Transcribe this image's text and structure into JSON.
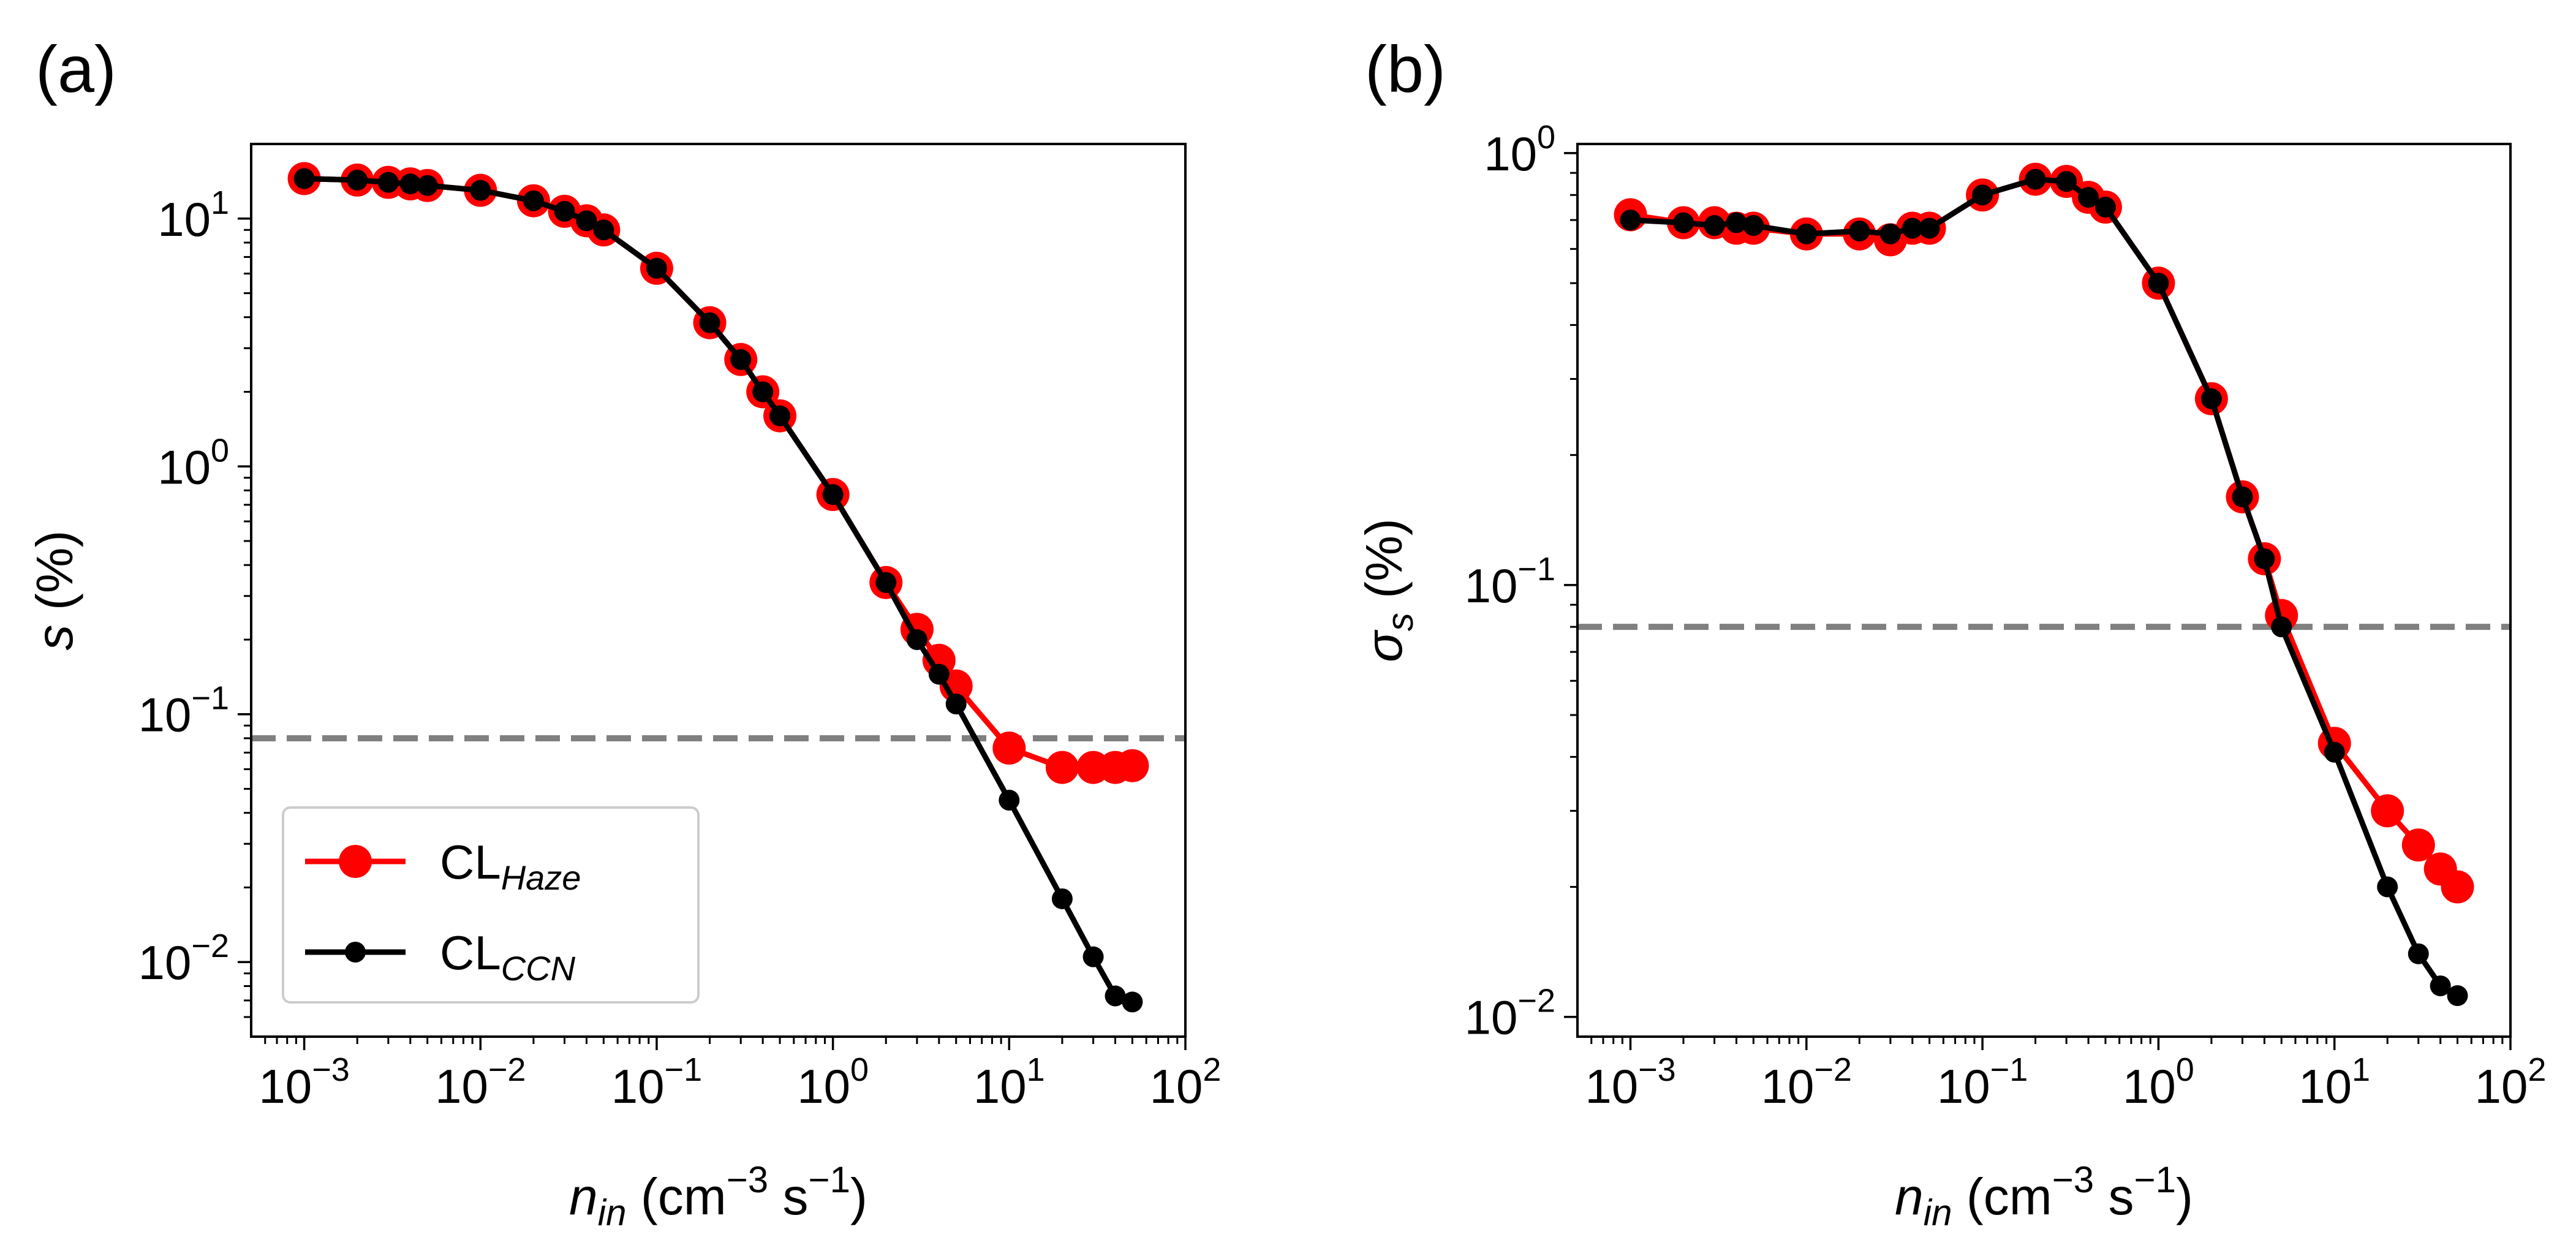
{
  "chart_data": [
    {
      "type": "line",
      "panel_label": "(a)",
      "xscale": "log",
      "yscale": "log",
      "xlim": [
        0.0005,
        100
      ],
      "ylim": [
        0.005,
        20
      ],
      "xticks": [
        {
          "value": 0.001,
          "base": "10",
          "exp": "−3"
        },
        {
          "value": 0.01,
          "base": "10",
          "exp": "−2"
        },
        {
          "value": 0.1,
          "base": "10",
          "exp": "−1"
        },
        {
          "value": 1,
          "base": "10",
          "exp": "0"
        },
        {
          "value": 10,
          "base": "10",
          "exp": "1"
        },
        {
          "value": 100,
          "base": "10",
          "exp": "2"
        }
      ],
      "yticks": [
        {
          "value": 0.01,
          "base": "10",
          "exp": "−2"
        },
        {
          "value": 0.1,
          "base": "10",
          "exp": "−1"
        },
        {
          "value": 1,
          "base": "10",
          "exp": "0"
        },
        {
          "value": 10,
          "base": "10",
          "exp": "1"
        }
      ],
      "xlabel": {
        "main": "n",
        "sub": "in",
        "units_pre": "(cm",
        "units_exp1": "−3",
        "units_mid": " s",
        "units_exp2": "−1",
        "units_post": ")"
      },
      "ylabel": {
        "main": "s",
        "units": " (%)"
      },
      "reference_line": {
        "y": 0.08,
        "style": "dashed",
        "color": "#808080"
      },
      "legend": {
        "placement": "lower-left"
      },
      "series": [
        {
          "name": "CL",
          "name_sub": "Haze",
          "color": "#ff0000",
          "marker": "large-circle",
          "x": [
            0.001,
            0.002,
            0.003,
            0.004,
            0.005,
            0.01,
            0.02,
            0.03,
            0.04,
            0.05,
            0.1,
            0.2,
            0.3,
            0.4,
            0.5,
            1,
            2,
            3,
            4,
            5,
            10,
            20,
            30,
            40,
            50
          ],
          "y": [
            14.5,
            14.3,
            14.0,
            13.8,
            13.6,
            13.0,
            11.8,
            10.7,
            9.8,
            9.0,
            6.3,
            3.8,
            2.7,
            2.0,
            1.6,
            0.77,
            0.34,
            0.22,
            0.165,
            0.13,
            0.073,
            0.061,
            0.061,
            0.061,
            0.062
          ]
        },
        {
          "name": "CL",
          "name_sub": "CCN",
          "color": "#000000",
          "marker": "small-circle",
          "x": [
            0.001,
            0.002,
            0.003,
            0.004,
            0.005,
            0.01,
            0.02,
            0.03,
            0.04,
            0.05,
            0.1,
            0.2,
            0.3,
            0.4,
            0.5,
            1,
            2,
            3,
            4,
            5,
            10,
            20,
            30,
            40,
            50
          ],
          "y": [
            14.5,
            14.3,
            14.0,
            13.8,
            13.6,
            13.0,
            11.8,
            10.7,
            9.8,
            9.0,
            6.3,
            3.8,
            2.7,
            2.0,
            1.6,
            0.77,
            0.34,
            0.2,
            0.145,
            0.11,
            0.045,
            0.018,
            0.0105,
            0.0073,
            0.0069
          ]
        }
      ]
    },
    {
      "type": "line",
      "panel_label": "(b)",
      "xscale": "log",
      "yscale": "log",
      "xlim": [
        0.0005,
        100
      ],
      "ylim": [
        0.009,
        1.05
      ],
      "xticks": [
        {
          "value": 0.001,
          "base": "10",
          "exp": "−3"
        },
        {
          "value": 0.01,
          "base": "10",
          "exp": "−2"
        },
        {
          "value": 0.1,
          "base": "10",
          "exp": "−1"
        },
        {
          "value": 1,
          "base": "10",
          "exp": "0"
        },
        {
          "value": 10,
          "base": "10",
          "exp": "1"
        },
        {
          "value": 100,
          "base": "10",
          "exp": "2"
        }
      ],
      "yticks": [
        {
          "value": 0.01,
          "base": "10",
          "exp": "−2"
        },
        {
          "value": 0.1,
          "base": "10",
          "exp": "−1"
        },
        {
          "value": 1,
          "base": "10",
          "exp": "0"
        }
      ],
      "xlabel": {
        "main": "n",
        "sub": "in",
        "units_pre": "(cm",
        "units_exp1": "−3",
        "units_mid": " s",
        "units_exp2": "−1",
        "units_post": ")"
      },
      "ylabel": {
        "main": "σ",
        "sub": "s",
        "units": " (%)"
      },
      "reference_line": {
        "y": 0.08,
        "style": "dashed",
        "color": "#808080"
      },
      "series": [
        {
          "name": "CL",
          "name_sub": "Haze",
          "color": "#ff0000",
          "marker": "large-circle",
          "x": [
            0.001,
            0.002,
            0.003,
            0.004,
            0.005,
            0.01,
            0.02,
            0.03,
            0.04,
            0.05,
            0.1,
            0.2,
            0.3,
            0.4,
            0.5,
            1,
            2,
            3,
            4,
            5,
            10,
            20,
            30,
            40,
            50
          ],
          "y": [
            0.72,
            0.69,
            0.69,
            0.67,
            0.67,
            0.65,
            0.65,
            0.63,
            0.67,
            0.67,
            0.8,
            0.87,
            0.86,
            0.79,
            0.75,
            0.5,
            0.27,
            0.16,
            0.115,
            0.085,
            0.043,
            0.03,
            0.025,
            0.022,
            0.02
          ]
        },
        {
          "name": "CL",
          "name_sub": "CCN",
          "color": "#000000",
          "marker": "small-circle",
          "x": [
            0.001,
            0.002,
            0.003,
            0.004,
            0.005,
            0.01,
            0.02,
            0.03,
            0.04,
            0.05,
            0.1,
            0.2,
            0.3,
            0.4,
            0.5,
            1,
            2,
            3,
            4,
            5,
            10,
            20,
            30,
            40,
            50
          ],
          "y": [
            0.7,
            0.69,
            0.68,
            0.69,
            0.68,
            0.65,
            0.66,
            0.65,
            0.67,
            0.67,
            0.8,
            0.87,
            0.86,
            0.79,
            0.75,
            0.5,
            0.27,
            0.16,
            0.115,
            0.08,
            0.041,
            0.02,
            0.014,
            0.0118,
            0.0112
          ]
        }
      ]
    }
  ]
}
